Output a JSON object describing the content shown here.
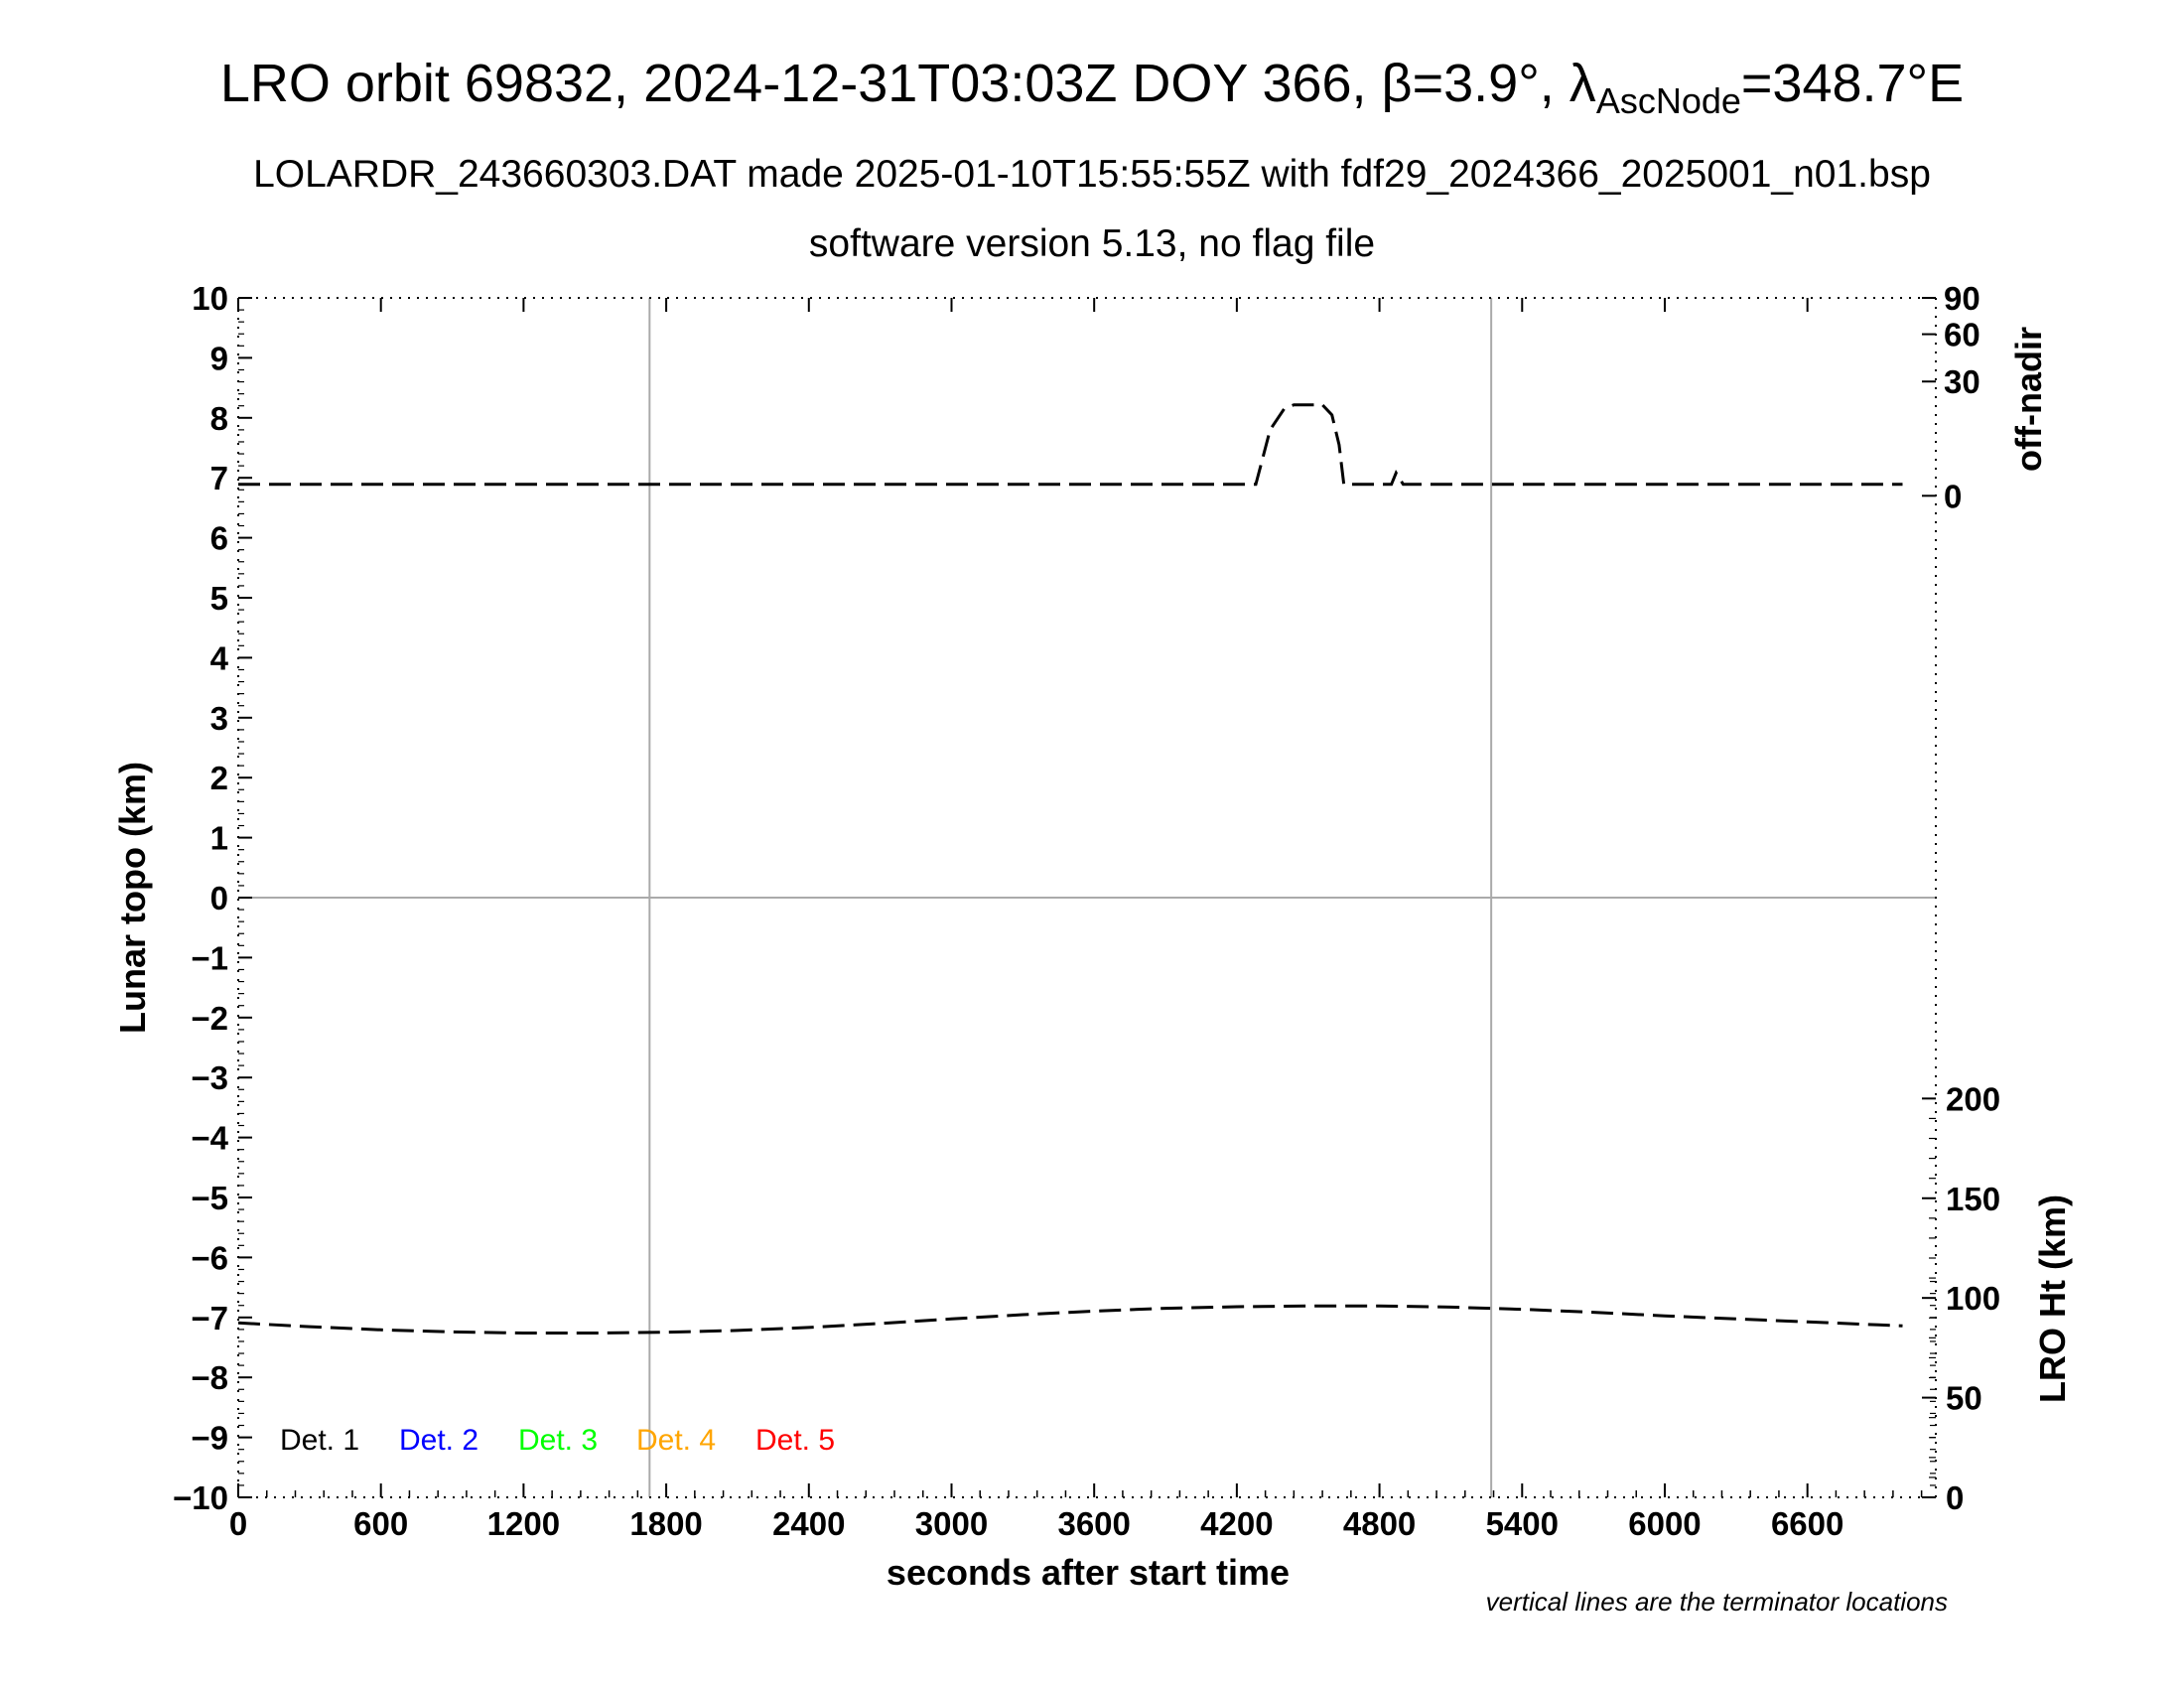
{
  "chart_data": {
    "type": "line",
    "title": {
      "main": "LRO orbit 69832, 2024-12-31T03:03Z DOY 366, β=3.9°, λ",
      "subscript": "AscNode",
      "suffix": "=348.7°E"
    },
    "subtitle_1": "LOLARDR_243660303.DAT made 2025-01-10T15:55:55Z with fdf29_2024366_2025001_n01.bsp",
    "subtitle_2": "software version 5.13, no flag file",
    "xlabel": "seconds after start time",
    "ylabel_left": "Lunar topo (km)",
    "ylabel_right_top": "off-nadir",
    "ylabel_right_bottom": "LRO Ht (km)",
    "footnote": "vertical lines are the terminator locations",
    "xlim": [
      0,
      7140
    ],
    "ylim_left": [
      -10,
      10
    ],
    "x_ticks": [
      0,
      600,
      1200,
      1800,
      2400,
      3000,
      3600,
      4200,
      4800,
      5400,
      6000,
      6600
    ],
    "x_tick_labels": [
      "0",
      "600",
      "1200",
      "1800",
      "2400",
      "3000",
      "3600",
      "4200",
      "4800",
      "5400",
      "6000",
      "6600"
    ],
    "y_ticks_left": [
      10,
      9,
      8,
      7,
      6,
      5,
      4,
      3,
      2,
      1,
      0,
      -1,
      -2,
      -3,
      -4,
      -5,
      -6,
      -7,
      -8,
      -9,
      -10
    ],
    "y_tick_labels_left": [
      "10",
      "9",
      "8",
      "7",
      "6",
      "5",
      "4",
      "3",
      "2",
      "1",
      "0",
      "−1",
      "−2",
      "−3",
      "−4",
      "−5",
      "−6",
      "−7",
      "−8",
      "−9",
      "−10"
    ],
    "offnadir_axis": {
      "ticks": [
        0,
        30,
        60,
        90
      ],
      "tick_labels": [
        "0",
        "30",
        "60",
        "90"
      ],
      "scale": "sqrt",
      "range": [
        0,
        90
      ]
    },
    "height_axis": {
      "ticks": [
        0,
        50,
        100,
        150,
        200
      ],
      "tick_labels": [
        "0",
        "50",
        "100",
        "150",
        "200"
      ],
      "range": [
        0,
        200
      ]
    },
    "terminator_x": [
      1730,
      5270
    ],
    "zero_line_y": 0,
    "legend": [
      {
        "label": "Det. 1",
        "color": "#000000"
      },
      {
        "label": "Det. 2",
        "color": "#0000ff"
      },
      {
        "label": "Det. 3",
        "color": "#00ff00"
      },
      {
        "label": "Det. 4",
        "color": "#ffa500"
      },
      {
        "label": "Det. 5",
        "color": "#ff0000"
      }
    ],
    "series": [
      {
        "axis": "off-nadir",
        "style": "dashed",
        "color": "#000000",
        "x": [
          0,
          4280,
          4300,
          4340,
          4400,
          4440,
          4560,
          4600,
          4630,
          4650,
          4800,
          4850,
          4870,
          4900,
          7000
        ],
        "y": [
          0.3,
          0.3,
          2.0,
          10.0,
          17.5,
          19.0,
          19.0,
          15.0,
          6.0,
          0.3,
          0.3,
          0.3,
          1.2,
          0.3,
          0.3
        ]
      },
      {
        "axis": "height",
        "style": "dashed",
        "color": "#000000",
        "x": [
          0,
          300,
          600,
          900,
          1200,
          1500,
          1800,
          2100,
          2400,
          2700,
          3000,
          3300,
          3600,
          3900,
          4200,
          4500,
          4800,
          5100,
          5400,
          5700,
          6000,
          6300,
          6600,
          6900,
          7000
        ],
        "y": [
          87.5,
          85.6,
          84.0,
          83.0,
          82.4,
          82.4,
          82.8,
          83.7,
          85.2,
          87.2,
          89.5,
          91.6,
          93.4,
          94.8,
          95.6,
          96.0,
          96.0,
          95.4,
          94.3,
          92.8,
          91.0,
          89.5,
          88.0,
          86.5,
          86.0
        ]
      }
    ]
  }
}
